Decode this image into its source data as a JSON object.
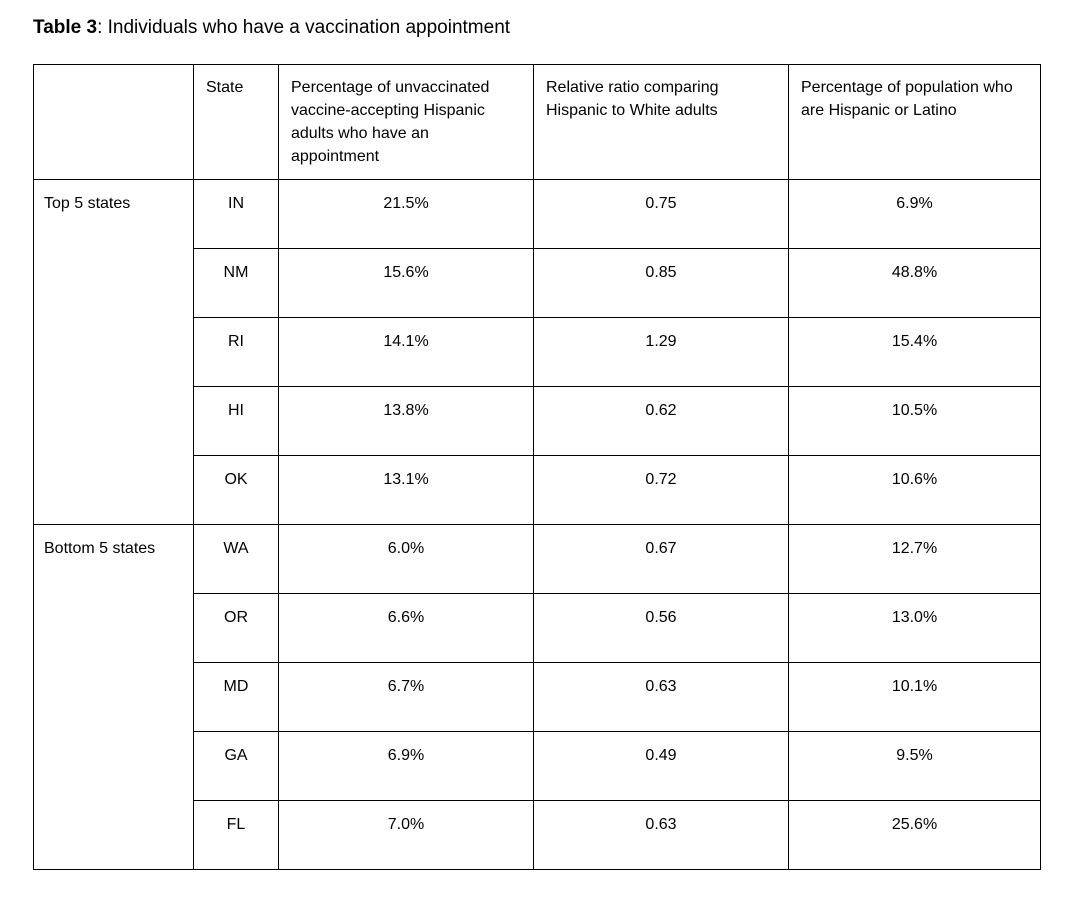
{
  "document": {
    "caption": {
      "label": "Table 3",
      "text": ": Individuals who have a vaccination appointment"
    }
  },
  "table": {
    "columns": {
      "group": "",
      "state": "State",
      "pct_appointment": "Percentage of unvaccinated vaccine-accepting Hispanic adults who have an appointment",
      "relative_ratio": "Relative ratio comparing Hispanic to White adults",
      "pct_population": "Percentage of population who are Hispanic or Latino"
    },
    "groups": [
      {
        "label": "Top 5 states",
        "rows": [
          {
            "state": "IN",
            "pct_appointment": "21.5%",
            "relative_ratio": "0.75",
            "pct_population": "6.9%"
          },
          {
            "state": "NM",
            "pct_appointment": "15.6%",
            "relative_ratio": "0.85",
            "pct_population": "48.8%"
          },
          {
            "state": "RI",
            "pct_appointment": "14.1%",
            "relative_ratio": "1.29",
            "pct_population": "15.4%"
          },
          {
            "state": "HI",
            "pct_appointment": "13.8%",
            "relative_ratio": "0.62",
            "pct_population": "10.5%"
          },
          {
            "state": "OK",
            "pct_appointment": "13.1%",
            "relative_ratio": "0.72",
            "pct_population": "10.6%"
          }
        ]
      },
      {
        "label": "Bottom 5 states",
        "rows": [
          {
            "state": "WA",
            "pct_appointment": "6.0%",
            "relative_ratio": "0.67",
            "pct_population": "12.7%"
          },
          {
            "state": "OR",
            "pct_appointment": "6.6%",
            "relative_ratio": "0.56",
            "pct_population": "13.0%"
          },
          {
            "state": "MD",
            "pct_appointment": "6.7%",
            "relative_ratio": "0.63",
            "pct_population": "10.1%"
          },
          {
            "state": "GA",
            "pct_appointment": "6.9%",
            "relative_ratio": "0.49",
            "pct_population": "9.5%"
          },
          {
            "state": "FL",
            "pct_appointment": "7.0%",
            "relative_ratio": "0.63",
            "pct_population": "25.6%"
          }
        ]
      }
    ]
  },
  "colors": {
    "border": "#000000",
    "text": "#000000",
    "background": "#ffffff"
  }
}
